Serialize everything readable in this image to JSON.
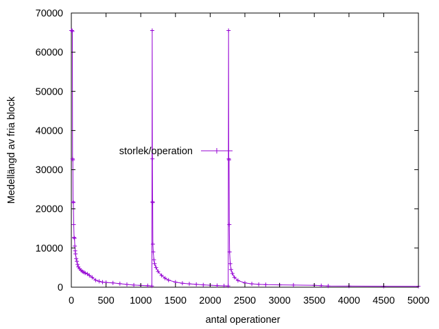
{
  "chart_data": {
    "type": "line",
    "title": "",
    "xlabel": "antal operationer",
    "ylabel": "Medellängd av fria block",
    "xlim": [
      0,
      5000
    ],
    "ylim": [
      0,
      70000
    ],
    "xticks": [
      0,
      500,
      1000,
      1500,
      2000,
      2500,
      3000,
      3500,
      4000,
      4500,
      5000
    ],
    "yticks": [
      0,
      10000,
      20000,
      30000,
      40000,
      50000,
      60000,
      70000
    ],
    "xtick_labels": [
      "0",
      "500",
      "1000",
      "1500",
      "2000",
      "2500",
      "3000",
      "3500",
      "4000",
      "4500",
      "5000"
    ],
    "ytick_labels": [
      "0",
      "10000",
      "20000",
      "30000",
      "40000",
      "50000",
      "60000",
      "70000"
    ],
    "grid": false,
    "legend_position": "center-left",
    "series": [
      {
        "name": "storlek/operation",
        "color": "#9400d3",
        "marker": "plus",
        "points": [
          [
            0,
            65536
          ],
          [
            5,
            65536
          ],
          [
            10,
            65536
          ],
          [
            15,
            65300
          ],
          [
            18,
            32768
          ],
          [
            22,
            32500
          ],
          [
            25,
            21845
          ],
          [
            30,
            21600
          ],
          [
            35,
            16000
          ],
          [
            40,
            12700
          ],
          [
            45,
            12500
          ],
          [
            50,
            10500
          ],
          [
            55,
            9300
          ],
          [
            60,
            8500
          ],
          [
            70,
            7300
          ],
          [
            80,
            6600
          ],
          [
            90,
            5800
          ],
          [
            100,
            5200
          ],
          [
            120,
            4700
          ],
          [
            140,
            4300
          ],
          [
            160,
            4000
          ],
          [
            180,
            3800
          ],
          [
            200,
            3600
          ],
          [
            230,
            3400
          ],
          [
            260,
            3000
          ],
          [
            300,
            2500
          ],
          [
            350,
            1800
          ],
          [
            400,
            1500
          ],
          [
            450,
            1300
          ],
          [
            500,
            1200
          ],
          [
            600,
            1100
          ],
          [
            700,
            900
          ],
          [
            800,
            700
          ],
          [
            900,
            550
          ],
          [
            1000,
            450
          ],
          [
            1100,
            380
          ],
          [
            1160,
            320
          ],
          [
            1165,
            65536
          ],
          [
            1168,
            32768
          ],
          [
            1170,
            21845
          ],
          [
            1172,
            21600
          ],
          [
            1175,
            11000
          ],
          [
            1180,
            9000
          ],
          [
            1190,
            7000
          ],
          [
            1200,
            6000
          ],
          [
            1220,
            5000
          ],
          [
            1250,
            4000
          ],
          [
            1300,
            3000
          ],
          [
            1350,
            2300
          ],
          [
            1400,
            1800
          ],
          [
            1500,
            1300
          ],
          [
            1600,
            1000
          ],
          [
            1700,
            850
          ],
          [
            1800,
            720
          ],
          [
            1900,
            600
          ],
          [
            2000,
            500
          ],
          [
            2100,
            420
          ],
          [
            2200,
            350
          ],
          [
            2260,
            300
          ],
          [
            2265,
            65536
          ],
          [
            2268,
            32768
          ],
          [
            2272,
            32500
          ],
          [
            2276,
            16000
          ],
          [
            2280,
            9000
          ],
          [
            2290,
            6000
          ],
          [
            2300,
            4500
          ],
          [
            2320,
            3500
          ],
          [
            2350,
            2500
          ],
          [
            2400,
            1700
          ],
          [
            2500,
            1100
          ],
          [
            2600,
            850
          ],
          [
            2700,
            720
          ],
          [
            2800,
            650
          ],
          [
            3000,
            600
          ],
          [
            3200,
            550
          ],
          [
            3500,
            480
          ],
          [
            3600,
            400
          ],
          [
            3700,
            300
          ],
          [
            4000,
            280
          ],
          [
            4500,
            250
          ],
          [
            5000,
            230
          ]
        ]
      }
    ]
  }
}
